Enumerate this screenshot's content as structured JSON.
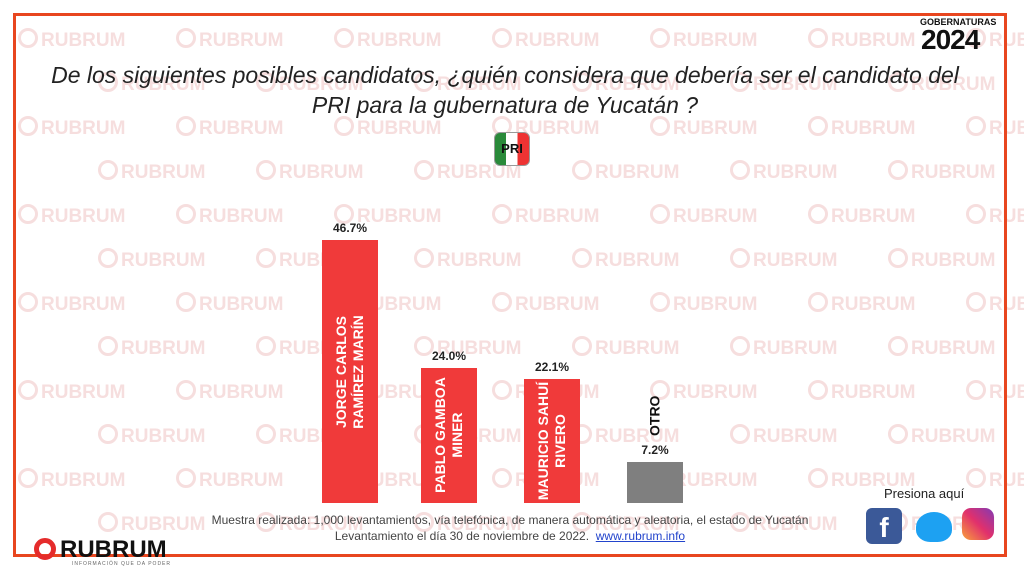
{
  "header": {
    "badge_top": "GOBERNATURAS",
    "badge_year": "2024",
    "party_logo": "PRI"
  },
  "watermark": "RUBRUM",
  "chart_data": {
    "type": "bar",
    "title": "De los siguientes posibles candidatos, ¿quién considera que debería ser  el candidato del PRI para la gubernatura de Yucatán ?",
    "categories": [
      "JORGE CARLOS RAMÍREZ MARÍN",
      "PABLO GAMBOA MINER",
      "MAURICIO SAHUÍ RIVERO",
      "OTRO"
    ],
    "values": [
      46.7,
      24.0,
      22.1,
      7.2
    ],
    "value_labels": [
      "46.7%",
      "24.0%",
      "22.1%",
      "7.2%"
    ],
    "colors": [
      "#f03a3a",
      "#f03a3a",
      "#f03a3a",
      "#7f7f7f"
    ]
  },
  "footer": {
    "note": "Muestra realizada: 1,000 levantamientos, vía telefónica, de manera automática y aleatoria, el estado de Yucatán",
    "date": "Levantamiento el día 30 de noviembre de 2022.",
    "link": "www.rubrum.info",
    "social_prompt": "Presiona aquí",
    "brand": "RUBRUM",
    "brand_tagline": "INFORMACIÓN QUE DA PODER"
  }
}
